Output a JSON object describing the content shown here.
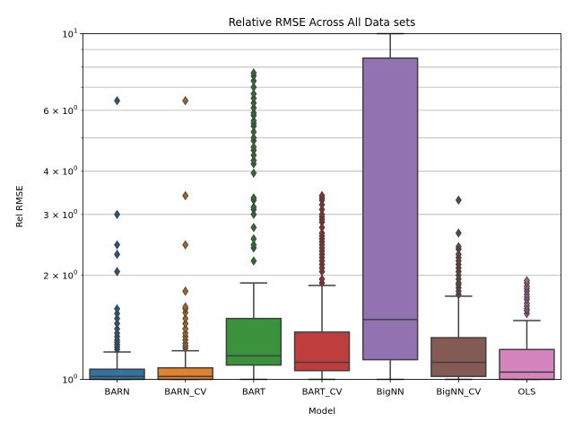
{
  "chart_data": {
    "type": "boxplot",
    "title": "Relative RMSE Across All Data sets",
    "xlabel": "Model",
    "ylabel": "Rel RMSE",
    "yscale": "log",
    "ylim": [
      1,
      10
    ],
    "grid": "horizontal",
    "major_ticks": [
      {
        "value": 1,
        "base": "10",
        "exp": "0"
      },
      {
        "value": 10,
        "base": "10",
        "exp": "1"
      }
    ],
    "minor_ticks": [
      {
        "value": 2,
        "base": "2 × 10",
        "exp": "0"
      },
      {
        "value": 3,
        "base": "3 × 10",
        "exp": "0"
      },
      {
        "value": 4,
        "base": "4 × 10",
        "exp": "0"
      },
      {
        "value": 5,
        "base": "",
        "exp": ""
      },
      {
        "value": 6,
        "base": "6 × 10",
        "exp": "0"
      },
      {
        "value": 7,
        "base": "",
        "exp": ""
      },
      {
        "value": 8,
        "base": "",
        "exp": ""
      },
      {
        "value": 9,
        "base": "",
        "exp": ""
      }
    ],
    "categories": [
      "BARN",
      "BARN_CV",
      "BART",
      "BART_CV",
      "BigNN",
      "BigNN_CV",
      "OLS"
    ],
    "colors": [
      "#3274a1",
      "#e1812c",
      "#3a923a",
      "#c03d3e",
      "#9372b2",
      "#845b53",
      "#d684bd"
    ],
    "boxes": [
      {
        "whislo": 1.0,
        "q1": 1.0,
        "med": 1.02,
        "q3": 1.07,
        "whishi": 1.2,
        "fliers": [
          1.22,
          1.24,
          1.26,
          1.28,
          1.3,
          1.33,
          1.36,
          1.4,
          1.45,
          1.5,
          1.55,
          1.6,
          2.05,
          2.3,
          2.45,
          3.0,
          6.4
        ]
      },
      {
        "whislo": 1.0,
        "q1": 1.0,
        "med": 1.02,
        "q3": 1.08,
        "whishi": 1.21,
        "fliers": [
          1.23,
          1.25,
          1.27,
          1.3,
          1.33,
          1.36,
          1.4,
          1.45,
          1.5,
          1.56,
          1.6,
          1.62,
          1.8,
          2.45,
          3.4,
          6.4
        ]
      },
      {
        "whislo": 1.0,
        "q1": 1.1,
        "med": 1.17,
        "q3": 1.5,
        "whishi": 1.9,
        "fliers": [
          2.2,
          2.4,
          2.45,
          2.55,
          2.75,
          3.0,
          3.1,
          3.15,
          3.3,
          3.35,
          3.95,
          4.2,
          4.3,
          4.45,
          4.6,
          4.7,
          4.9,
          5.0,
          5.2,
          5.4,
          5.5,
          5.6,
          5.8,
          5.9,
          6.1,
          6.3,
          6.5,
          6.7,
          7.0,
          7.3,
          7.55,
          7.7
        ]
      },
      {
        "whislo": 1.0,
        "q1": 1.06,
        "med": 1.12,
        "q3": 1.37,
        "whishi": 1.87,
        "fliers": [
          1.9,
          1.95,
          2.05,
          2.1,
          2.15,
          2.2,
          2.25,
          2.3,
          2.35,
          2.4,
          2.45,
          2.5,
          2.55,
          2.6,
          2.65,
          2.75,
          2.85,
          2.9,
          2.95,
          3.0,
          3.1,
          3.2,
          3.3,
          3.35,
          3.4
        ]
      },
      {
        "whislo": 1.0,
        "q1": 1.14,
        "med": 1.49,
        "q3": 8.5,
        "whishi": 10.0,
        "fliers": []
      },
      {
        "whislo": 1.0,
        "q1": 1.02,
        "med": 1.12,
        "q3": 1.32,
        "whishi": 1.74,
        "fliers": [
          1.76,
          1.8,
          1.84,
          1.88,
          1.9,
          1.95,
          2.0,
          2.05,
          2.1,
          2.15,
          2.2,
          2.25,
          2.3,
          2.38,
          2.42,
          2.65,
          3.3
        ]
      },
      {
        "whislo": 1.0,
        "q1": 1.0,
        "med": 1.05,
        "q3": 1.22,
        "whishi": 1.48,
        "fliers": [
          1.55,
          1.58,
          1.6,
          1.63,
          1.66,
          1.7,
          1.73,
          1.76,
          1.8,
          1.83,
          1.86,
          1.9,
          1.93
        ]
      }
    ]
  }
}
